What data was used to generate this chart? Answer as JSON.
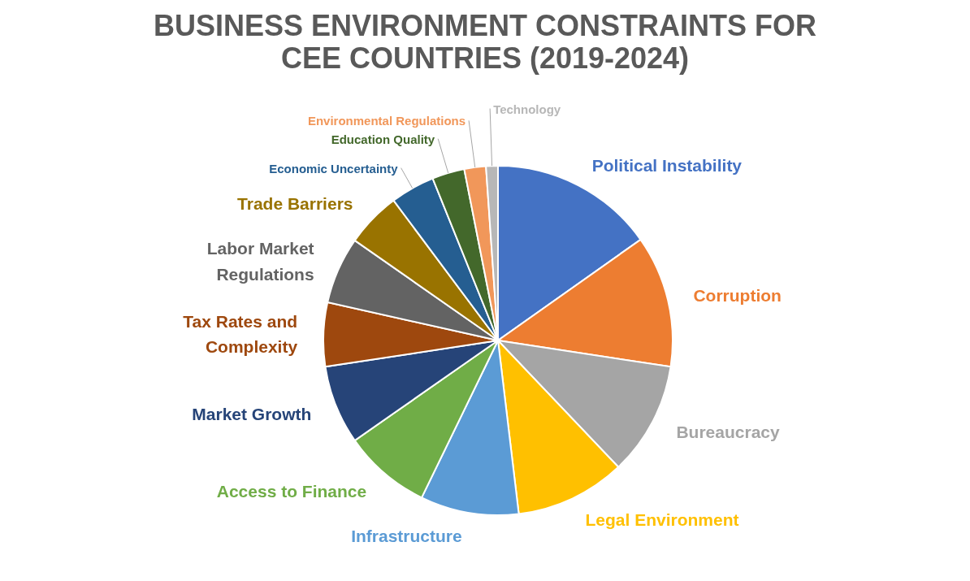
{
  "chart_data": {
    "type": "pie",
    "title": "BUSINESS ENVIRONMENT CONSTRAINTS FOR CEE COUNTRIES (2019-2024)",
    "categories": [
      "Political Instability",
      "Corruption",
      "Bureaucracy",
      "Legal Environment",
      "Infrastructure",
      "Access to Finance",
      "Market Growth",
      "Tax Rates and Complexity",
      "Labor Market Regulations",
      "Trade Barriers",
      "Economic Uncertainty",
      "Education Quality",
      "Environmental Regulations",
      "Technology"
    ],
    "values": [
      15.2,
      12.2,
      10.5,
      10.2,
      9.1,
      8.1,
      7.3,
      5.9,
      6.2,
      5.1,
      4.1,
      3.0,
      2.0,
      1.1
    ],
    "colors": [
      "#4472c4",
      "#ed7d31",
      "#a5a5a5",
      "#ffc000",
      "#5b9bd5",
      "#70ad47",
      "#264478",
      "#9e480e",
      "#636363",
      "#997300",
      "#255e91",
      "#43682b",
      "#f1975a",
      "#b7b7b7"
    ]
  }
}
